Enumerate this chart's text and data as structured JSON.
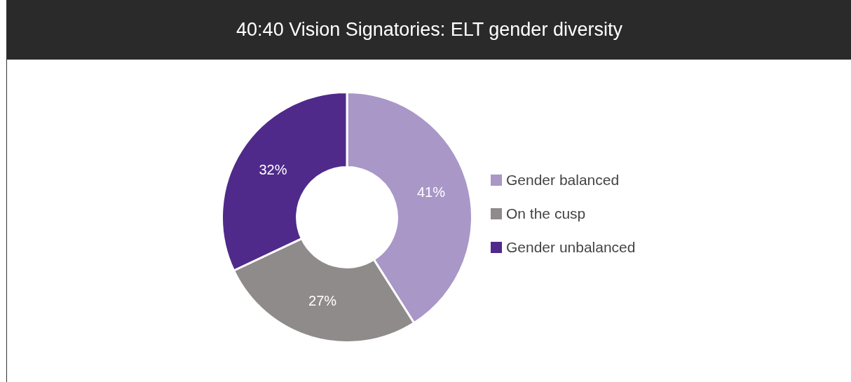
{
  "chart_data": {
    "type": "donut",
    "title": "40:40 Vision Signatories: ELT gender diversity",
    "categories": [
      "Gender balanced",
      "On the cusp",
      "Gender unbalanced"
    ],
    "values": [
      41,
      27,
      32
    ],
    "colors": [
      "#a897c7",
      "#8f8b8a",
      "#4f2a8a"
    ],
    "value_labels": [
      "41%",
      "27%",
      "32%"
    ],
    "legend": "right"
  }
}
